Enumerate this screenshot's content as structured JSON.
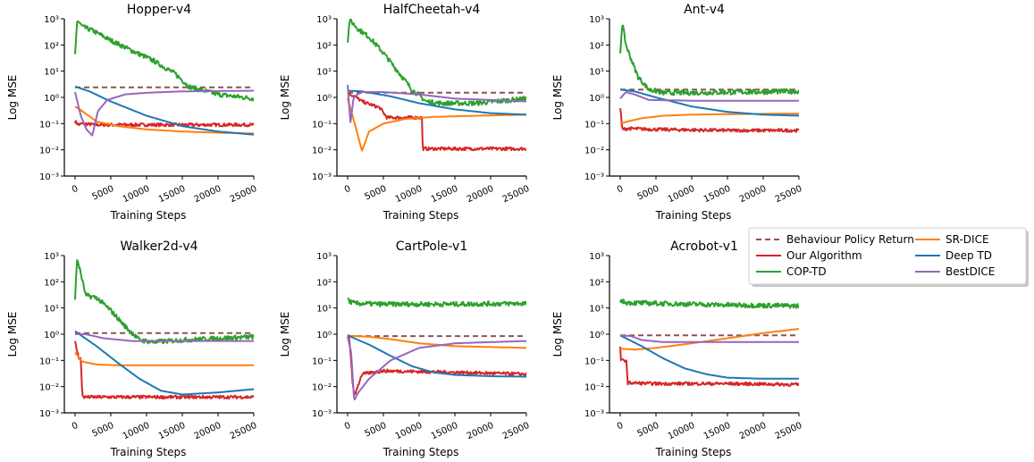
{
  "figure": {
    "xlabel": "Training Steps",
    "ylabel": "Log MSE",
    "legend": {
      "placement": "right, between rows",
      "entries": [
        {
          "name": "Behaviour Policy Return",
          "color": "#8c564b",
          "dashed": true
        },
        {
          "name": "Our Algorithm",
          "color": "#d62728"
        },
        {
          "name": "COP-TD",
          "color": "#2ca02c"
        },
        {
          "name": "SR-DICE",
          "color": "#ff7f0e"
        },
        {
          "name": "Deep TD",
          "color": "#1f77b4"
        },
        {
          "name": "BestDICE",
          "color": "#9467bd"
        }
      ]
    }
  },
  "chart_data": [
    {
      "type": "line",
      "title": "Hopper-v4",
      "xlabel": "Training Steps",
      "ylabel": "Log MSE",
      "yscale": "log",
      "ylim": [
        0.001,
        1000
      ],
      "xlim": [
        -1500,
        25000
      ],
      "xticks": [
        0,
        5000,
        10000,
        15000,
        20000,
        25000
      ],
      "yticks": [
        "10⁻³",
        "10⁻²",
        "10⁻¹",
        "10⁰",
        "10¹",
        "10²",
        "10³"
      ],
      "series": [
        {
          "name": "Behaviour Policy Return",
          "x": [
            0,
            25000
          ],
          "y": [
            2.4,
            2.4
          ]
        },
        {
          "name": "Our Algorithm",
          "x": [
            0,
            500,
            1000,
            3000,
            10000,
            25000
          ],
          "y": [
            0.12,
            0.09,
            0.1,
            0.09,
            0.09,
            0.09
          ]
        },
        {
          "name": "COP-TD",
          "x": [
            0,
            300,
            1000,
            2500,
            5000,
            8000,
            11000,
            14000,
            16000,
            20000,
            25000
          ],
          "y": [
            40,
            900,
            500,
            350,
            150,
            60,
            25,
            8,
            2.5,
            1.3,
            0.9
          ]
        },
        {
          "name": "SR-DICE",
          "x": [
            0,
            1000,
            3000,
            6000,
            10000,
            15000,
            20000,
            25000
          ],
          "y": [
            0.45,
            0.3,
            0.12,
            0.08,
            0.06,
            0.05,
            0.045,
            0.042
          ]
        },
        {
          "name": "Deep TD",
          "x": [
            0,
            2000,
            5000,
            10000,
            15000,
            20000,
            25000
          ],
          "y": [
            2.6,
            1.7,
            0.7,
            0.2,
            0.08,
            0.05,
            0.038
          ]
        },
        {
          "name": "BestDICE",
          "x": [
            0,
            800,
            1600,
            2400,
            3200,
            4500,
            7000,
            10000,
            15000,
            25000
          ],
          "y": [
            1.6,
            0.2,
            0.06,
            0.035,
            0.3,
            0.8,
            1.3,
            1.5,
            1.7,
            1.8
          ]
        }
      ]
    },
    {
      "type": "line",
      "title": "HalfCheetah-v4",
      "xlabel": "Training Steps",
      "ylabel": "Log MSE",
      "yscale": "log",
      "ylim": [
        0.001,
        1000
      ],
      "xlim": [
        -1500,
        25000
      ],
      "xticks": [
        0,
        5000,
        10000,
        15000,
        20000,
        25000
      ],
      "yticks": [
        "10⁻³",
        "10⁻²",
        "10⁻¹",
        "10⁰",
        "10¹",
        "10²",
        "10³"
      ],
      "series": [
        {
          "name": "Behaviour Policy Return",
          "x": [
            0,
            25000
          ],
          "y": [
            1.5,
            1.5
          ]
        },
        {
          "name": "Our Algorithm",
          "x": [
            0,
            400,
            1000,
            2000,
            4500,
            5500,
            10400,
            10500,
            15000,
            25000
          ],
          "y": [
            1.5,
            1.3,
            1.1,
            0.7,
            0.4,
            0.17,
            0.17,
            0.011,
            0.011,
            0.011
          ]
        },
        {
          "name": "COP-TD",
          "x": [
            0,
            300,
            1500,
            3000,
            5000,
            7000,
            9000,
            11000,
            13000,
            18000,
            25000
          ],
          "y": [
            150,
            900,
            400,
            200,
            50,
            10,
            2,
            0.7,
            0.6,
            0.6,
            0.9
          ]
        },
        {
          "name": "SR-DICE",
          "x": [
            0,
            1000,
            2000,
            3000,
            5000,
            8000,
            12000,
            18000,
            25000
          ],
          "y": [
            0.9,
            0.1,
            0.009,
            0.05,
            0.1,
            0.15,
            0.18,
            0.2,
            0.22
          ]
        },
        {
          "name": "Deep TD",
          "x": [
            0,
            2000,
            6000,
            10000,
            15000,
            20000,
            25000
          ],
          "y": [
            1.8,
            1.7,
            1.1,
            0.6,
            0.35,
            0.25,
            0.22
          ]
        },
        {
          "name": "BestDICE",
          "x": [
            0,
            400,
            800,
            1200,
            2000,
            5000,
            10000,
            15000,
            20000,
            25000
          ],
          "y": [
            3,
            0.1,
            0.9,
            1.2,
            1.6,
            1.6,
            1.3,
            0.9,
            0.8,
            0.7
          ]
        }
      ]
    },
    {
      "type": "line",
      "title": "Ant-v4",
      "xlabel": "Training Steps",
      "ylabel": "Log MSE",
      "yscale": "log",
      "ylim": [
        0.001,
        1000
      ],
      "xlim": [
        -1500,
        25000
      ],
      "xticks": [
        0,
        5000,
        10000,
        15000,
        20000,
        25000
      ],
      "yticks": [
        "10⁻³",
        "10⁻²",
        "10⁻¹",
        "10⁰",
        "10¹",
        "10²",
        "10³"
      ],
      "series": [
        {
          "name": "Behaviour Policy Return",
          "x": [
            0,
            25000
          ],
          "y": [
            2.0,
            2.0
          ]
        },
        {
          "name": "Our Algorithm",
          "x": [
            0,
            300,
            1000,
            5000,
            15000,
            25000
          ],
          "y": [
            0.4,
            0.06,
            0.065,
            0.06,
            0.055,
            0.055
          ]
        },
        {
          "name": "COP-TD",
          "x": [
            0,
            300,
            800,
            1500,
            2500,
            4000,
            6000,
            10000,
            25000
          ],
          "y": [
            50,
            700,
            100,
            30,
            6,
            2,
            1.5,
            1.5,
            1.7
          ]
        },
        {
          "name": "SR-DICE",
          "x": [
            0,
            1000,
            3000,
            6000,
            10000,
            15000,
            25000
          ],
          "y": [
            0.1,
            0.12,
            0.16,
            0.2,
            0.22,
            0.23,
            0.24
          ]
        },
        {
          "name": "Deep TD",
          "x": [
            0,
            2000,
            5000,
            10000,
            15000,
            20000,
            25000
          ],
          "y": [
            2.0,
            1.7,
            1.0,
            0.45,
            0.28,
            0.22,
            0.2
          ]
        },
        {
          "name": "BestDICE",
          "x": [
            0,
            800,
            2000,
            4000,
            10000,
            25000
          ],
          "y": [
            0.9,
            1.6,
            1.3,
            0.8,
            0.75,
            0.75
          ]
        }
      ]
    },
    {
      "type": "line",
      "title": "Walker2d-v4",
      "xlabel": "Training Steps",
      "ylabel": "Log MSE",
      "yscale": "log",
      "ylim": [
        0.001,
        1000
      ],
      "xlim": [
        -1500,
        25000
      ],
      "xticks": [
        0,
        5000,
        10000,
        15000,
        20000,
        25000
      ],
      "yticks": [
        "10⁻³",
        "10⁻²",
        "10⁻¹",
        "10⁰",
        "10¹",
        "10²",
        "10³"
      ],
      "series": [
        {
          "name": "Behaviour Policy Return",
          "x": [
            0,
            25000
          ],
          "y": [
            1.1,
            1.1
          ]
        },
        {
          "name": "Our Algorithm",
          "x": [
            0,
            500,
            800,
            1000,
            1200,
            3000,
            8000,
            15000,
            25000
          ],
          "y": [
            0.5,
            0.13,
            0.12,
            0.005,
            0.004,
            0.004,
            0.004,
            0.004,
            0.004
          ]
        },
        {
          "name": "COP-TD",
          "x": [
            0,
            300,
            1500,
            3000,
            5000,
            7000,
            9000,
            11000,
            15000,
            25000
          ],
          "y": [
            25,
            800,
            30,
            25,
            8,
            2,
            0.6,
            0.5,
            0.6,
            0.8
          ]
        },
        {
          "name": "SR-DICE",
          "x": [
            0,
            1000,
            3000,
            6000,
            15000,
            25000
          ],
          "y": [
            0.2,
            0.09,
            0.07,
            0.065,
            0.065,
            0.065
          ]
        },
        {
          "name": "Deep TD",
          "x": [
            0,
            3000,
            6000,
            9000,
            12000,
            15000,
            20000,
            25000
          ],
          "y": [
            1.3,
            0.35,
            0.08,
            0.02,
            0.007,
            0.005,
            0.006,
            0.008
          ]
        },
        {
          "name": "BestDICE",
          "x": [
            0,
            1500,
            4000,
            8000,
            15000,
            25000
          ],
          "y": [
            1.0,
            1.0,
            0.7,
            0.55,
            0.55,
            0.55
          ]
        }
      ]
    },
    {
      "type": "line",
      "title": "CartPole-v1",
      "xlabel": "Training Steps",
      "ylabel": "Log MSE",
      "yscale": "log",
      "ylim": [
        0.001,
        1000
      ],
      "xlim": [
        -1500,
        25000
      ],
      "xticks": [
        0,
        5000,
        10000,
        15000,
        20000,
        25000
      ],
      "yticks": [
        "10⁻³",
        "10⁻²",
        "10⁻¹",
        "10⁰",
        "10¹",
        "10²",
        "10³"
      ],
      "series": [
        {
          "name": "Behaviour Policy Return",
          "x": [
            0,
            25000
          ],
          "y": [
            0.85,
            0.85
          ]
        },
        {
          "name": "Our Algorithm",
          "x": [
            0,
            200,
            500,
            700,
            1000,
            2000,
            5000,
            15000,
            25000
          ],
          "y": [
            0.9,
            0.8,
            0.1,
            0.01,
            0.005,
            0.03,
            0.04,
            0.035,
            0.03
          ]
        },
        {
          "name": "COP-TD",
          "x": [
            0,
            200,
            1000,
            5000,
            15000,
            25000
          ],
          "y": [
            25,
            18,
            15,
            14,
            14,
            15
          ]
        },
        {
          "name": "SR-DICE",
          "x": [
            0,
            1000,
            3000,
            6000,
            10000,
            15000,
            25000
          ],
          "y": [
            0.9,
            0.85,
            0.8,
            0.65,
            0.45,
            0.35,
            0.3
          ]
        },
        {
          "name": "Deep TD",
          "x": [
            0,
            3000,
            6000,
            9000,
            12000,
            15000,
            20000,
            25000
          ],
          "y": [
            0.9,
            0.4,
            0.15,
            0.06,
            0.035,
            0.028,
            0.025,
            0.024
          ]
        },
        {
          "name": "BestDICE",
          "x": [
            0,
            500,
            900,
            1500,
            3000,
            6000,
            10000,
            15000,
            20000,
            25000
          ],
          "y": [
            0.8,
            0.2,
            0.003,
            0.006,
            0.02,
            0.1,
            0.3,
            0.45,
            0.5,
            0.55
          ]
        }
      ]
    },
    {
      "type": "line",
      "title": "Acrobot-v1",
      "xlabel": "Training Steps",
      "ylabel": "Log MSE",
      "yscale": "log",
      "ylim": [
        0.001,
        1000
      ],
      "xlim": [
        -1500,
        25000
      ],
      "xticks": [
        0,
        5000,
        10000,
        15000,
        20000,
        25000
      ],
      "yticks": [
        "10⁻³",
        "10⁻²",
        "10⁻¹",
        "10⁰",
        "10¹",
        "10²",
        "10³"
      ],
      "series": [
        {
          "name": "Behaviour Policy Return",
          "x": [
            0,
            25000
          ],
          "y": [
            0.9,
            0.9
          ]
        },
        {
          "name": "Our Algorithm",
          "x": [
            0,
            100,
            900,
            1000,
            5000,
            15000,
            25000
          ],
          "y": [
            0.35,
            0.1,
            0.1,
            0.014,
            0.013,
            0.013,
            0.012
          ]
        },
        {
          "name": "COP-TD",
          "x": [
            0,
            200,
            1000,
            5000,
            15000,
            25000
          ],
          "y": [
            22,
            18,
            16,
            15,
            13,
            12
          ]
        },
        {
          "name": "SR-DICE",
          "x": [
            0,
            2000,
            5000,
            10000,
            15000,
            20000,
            25000
          ],
          "y": [
            0.28,
            0.26,
            0.3,
            0.45,
            0.7,
            1.1,
            1.6
          ]
        },
        {
          "name": "Deep TD",
          "x": [
            0,
            3000,
            6000,
            9000,
            12000,
            15000,
            20000,
            25000
          ],
          "y": [
            0.9,
            0.35,
            0.12,
            0.05,
            0.03,
            0.022,
            0.02,
            0.02
          ]
        },
        {
          "name": "BestDICE",
          "x": [
            0,
            1500,
            3000,
            6000,
            15000,
            25000
          ],
          "y": [
            0.9,
            0.85,
            0.6,
            0.5,
            0.5,
            0.5
          ]
        }
      ]
    }
  ]
}
